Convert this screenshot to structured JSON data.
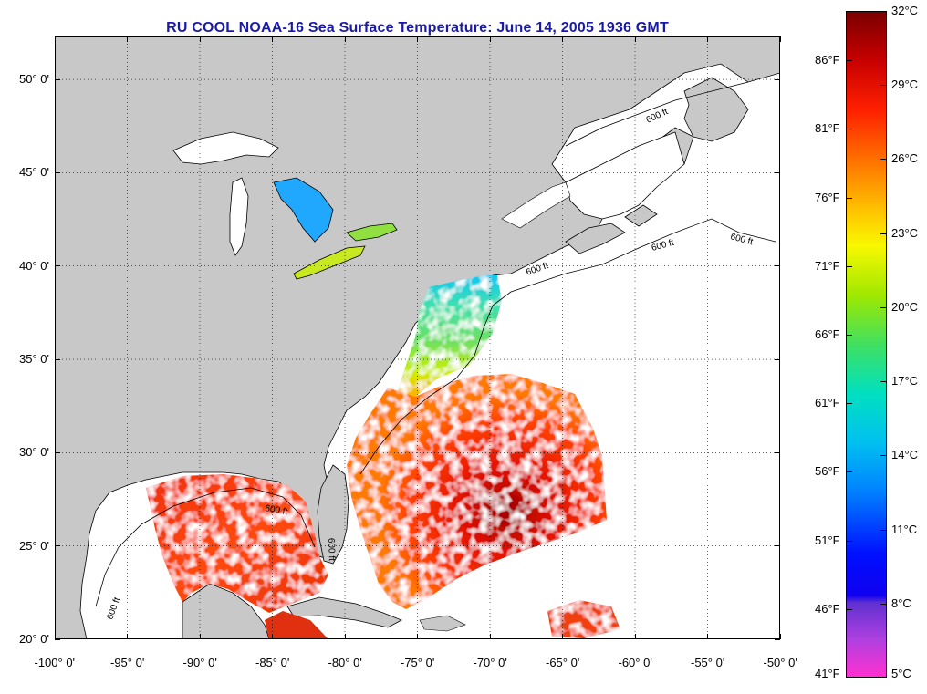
{
  "title": "RU COOL  NOAA-16  Sea Surface Temperature:  June 14, 2005 1936 GMT",
  "map": {
    "lon_range": [
      -100,
      -50
    ],
    "lat_range": [
      20,
      52.3
    ],
    "lon_ticks": [
      {
        "value": -100,
        "label": "-100° 0'"
      },
      {
        "value": -95,
        "label": "-95° 0'"
      },
      {
        "value": -90,
        "label": "-90° 0'"
      },
      {
        "value": -85,
        "label": "-85° 0'"
      },
      {
        "value": -80,
        "label": "-80° 0'"
      },
      {
        "value": -75,
        "label": "-75° 0'"
      },
      {
        "value": -70,
        "label": "-70° 0'"
      },
      {
        "value": -65,
        "label": "-65° 0'"
      },
      {
        "value": -60,
        "label": "-60° 0'"
      },
      {
        "value": -55,
        "label": "-55° 0'"
      },
      {
        "value": -50,
        "label": "-50° 0'"
      }
    ],
    "lat_ticks": [
      {
        "value": 50,
        "label": "50° 0'"
      },
      {
        "value": 45,
        "label": "45° 0'"
      },
      {
        "value": 40,
        "label": "40° 0'"
      },
      {
        "value": 35,
        "label": "35° 0'"
      },
      {
        "value": 30,
        "label": "30° 0'"
      },
      {
        "value": 25,
        "label": "25° 0'"
      },
      {
        "value": 20,
        "label": "20° 0'"
      }
    ],
    "contour_label": "600 ft",
    "land_color": "#c8c8c8",
    "water_color": "#ffffff",
    "grid": "dotted"
  },
  "colorbar": {
    "range_c": [
      5,
      32
    ],
    "celsius_labels": [
      {
        "value": 32,
        "label": "32°C"
      },
      {
        "value": 29,
        "label": "29°C"
      },
      {
        "value": 26,
        "label": "26°C"
      },
      {
        "value": 23,
        "label": "23°C"
      },
      {
        "value": 20,
        "label": "20°C"
      },
      {
        "value": 17,
        "label": "17°C"
      },
      {
        "value": 14,
        "label": "14°C"
      },
      {
        "value": 11,
        "label": "11°C"
      },
      {
        "value": 8,
        "label": "8°C"
      },
      {
        "value": 5,
        "label": "5°C"
      }
    ],
    "fahrenheit_labels": [
      {
        "value": 86,
        "label": "86°F"
      },
      {
        "value": 81,
        "label": "81°F"
      },
      {
        "value": 76,
        "label": "76°F"
      },
      {
        "value": 71,
        "label": "71°F"
      },
      {
        "value": 66,
        "label": "66°F"
      },
      {
        "value": 61,
        "label": "61°F"
      },
      {
        "value": 56,
        "label": "56°F"
      },
      {
        "value": 51,
        "label": "51°F"
      },
      {
        "value": 46,
        "label": "46°F"
      },
      {
        "value": 41,
        "label": "41°F"
      }
    ],
    "gradient": [
      {
        "c": 32,
        "color": "#7a0000"
      },
      {
        "c": 30,
        "color": "#c80000"
      },
      {
        "c": 28,
        "color": "#ff2000"
      },
      {
        "c": 26,
        "color": "#ff7000"
      },
      {
        "c": 24,
        "color": "#ffc000"
      },
      {
        "c": 22.5,
        "color": "#f8f800"
      },
      {
        "c": 20.5,
        "color": "#a0e800"
      },
      {
        "c": 18.5,
        "color": "#40e060"
      },
      {
        "c": 16.5,
        "color": "#00e0c0"
      },
      {
        "c": 14.5,
        "color": "#00c0f0"
      },
      {
        "c": 12.5,
        "color": "#0080ff"
      },
      {
        "c": 10,
        "color": "#0010ff"
      },
      {
        "c": 8.3,
        "color": "#1000f0"
      },
      {
        "c": 8.0,
        "color": "#6030d0"
      },
      {
        "c": 6.5,
        "color": "#b040e0"
      },
      {
        "c": 5,
        "color": "#ff30d0"
      }
    ]
  }
}
